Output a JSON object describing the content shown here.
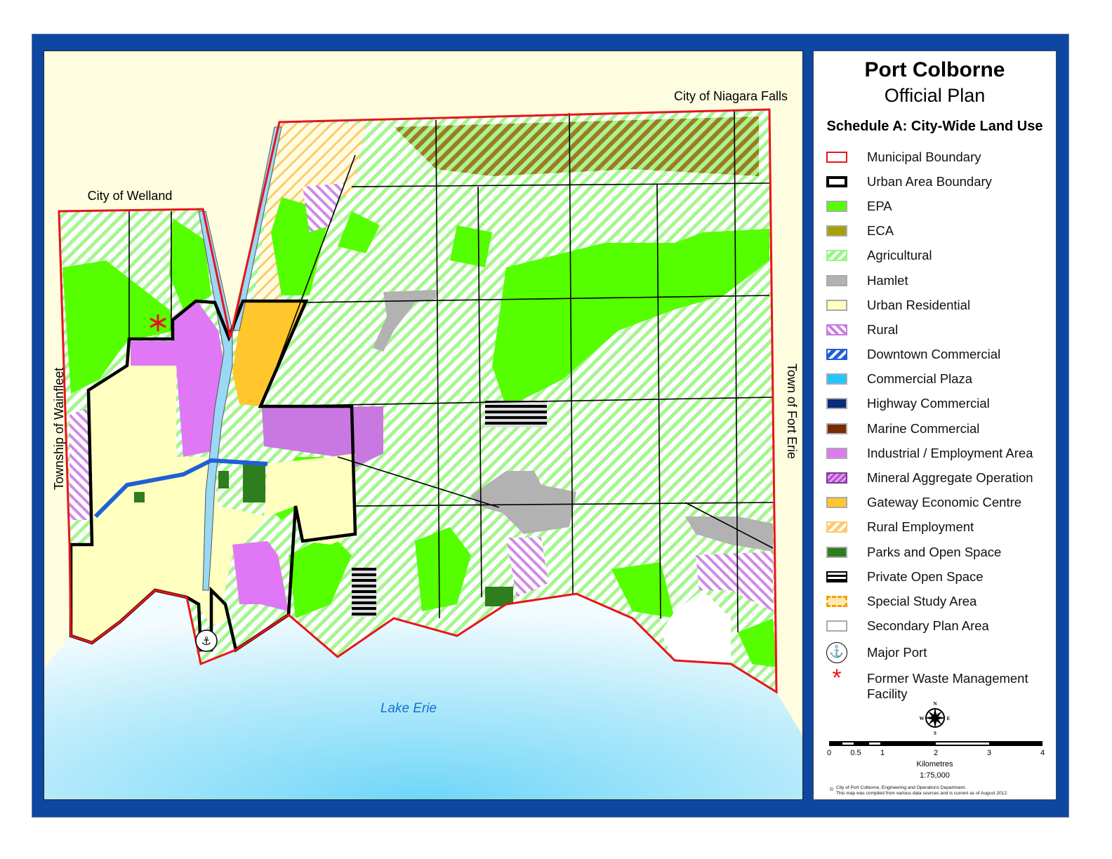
{
  "title": "Port Colborne",
  "subtitle": "Official Plan",
  "schedule": "Schedule A: City-Wide Land Use",
  "map_labels": {
    "north": "City of Niagara Falls",
    "northwest": "City of Welland",
    "west": "Township of Wainfleet",
    "east": "Town of Fort Erie",
    "lake": "Lake Erie"
  },
  "legend": [
    {
      "label": "Municipal Boundary",
      "swatch": "outline",
      "color": "#e8141b"
    },
    {
      "label": "Urban Area Boundary",
      "swatch": "outline-thick",
      "color": "#000000"
    },
    {
      "label": "EPA",
      "swatch": "solid",
      "color": "#55ff00"
    },
    {
      "label": "ECA",
      "swatch": "solid",
      "color": "#a8a000"
    },
    {
      "label": "Agricultural",
      "swatch": "hatch",
      "color": "#9cf58a"
    },
    {
      "label": "Hamlet",
      "swatch": "solid",
      "color": "#b2b2b2"
    },
    {
      "label": "Urban Residential",
      "swatch": "solid",
      "color": "#ffffc0"
    },
    {
      "label": "Rural",
      "swatch": "hatch-back",
      "color": "#c87de0"
    },
    {
      "label": "Downtown Commercial",
      "swatch": "hatch",
      "color": "#1f5fd6"
    },
    {
      "label": "Commercial Plaza",
      "swatch": "solid",
      "color": "#1ec8ff"
    },
    {
      "label": "Highway Commercial",
      "swatch": "solid",
      "color": "#0a2a7a"
    },
    {
      "label": "Marine Commercial",
      "swatch": "solid",
      "color": "#7a2a00"
    },
    {
      "label": "Industrial / Employment Area",
      "swatch": "solid",
      "color": "#e078f5"
    },
    {
      "label": "Mineral Aggregate Operation",
      "swatch": "hatch-dense",
      "color": "#b050d0"
    },
    {
      "label": "Gateway Economic Centre",
      "swatch": "solid",
      "color": "#ffc72c"
    },
    {
      "label": "Rural Employment",
      "swatch": "hatch",
      "color": "#ffc870"
    },
    {
      "label": "Parks and Open Space",
      "swatch": "solid",
      "color": "#2e7d1e"
    },
    {
      "label": "Private Open Space",
      "swatch": "stripes",
      "color": "#000000"
    },
    {
      "label": "Special Study Area",
      "swatch": "dashed",
      "color": "#f5a000"
    },
    {
      "label": "Secondary Plan Area",
      "swatch": "solid",
      "color": "#ffffff"
    },
    {
      "label": "Major Port",
      "swatch": "anchor",
      "color": "#000000"
    },
    {
      "label": "Former Waste Management Facility",
      "swatch": "asterisk",
      "color": "#e8141b"
    }
  ],
  "compass": {
    "n": "N",
    "s": "S",
    "e": "E",
    "w": "W"
  },
  "scale_bar": {
    "ticks": [
      "0",
      "0.5",
      "1",
      "2",
      "3",
      "4"
    ],
    "unit": "Kilometres",
    "ratio": "1:75,000"
  },
  "credits": {
    "line1": "City of Port Colborne, Engineering and Operations Department.",
    "line2": "This map was compiled from various data sources and is current as of August 2012."
  }
}
